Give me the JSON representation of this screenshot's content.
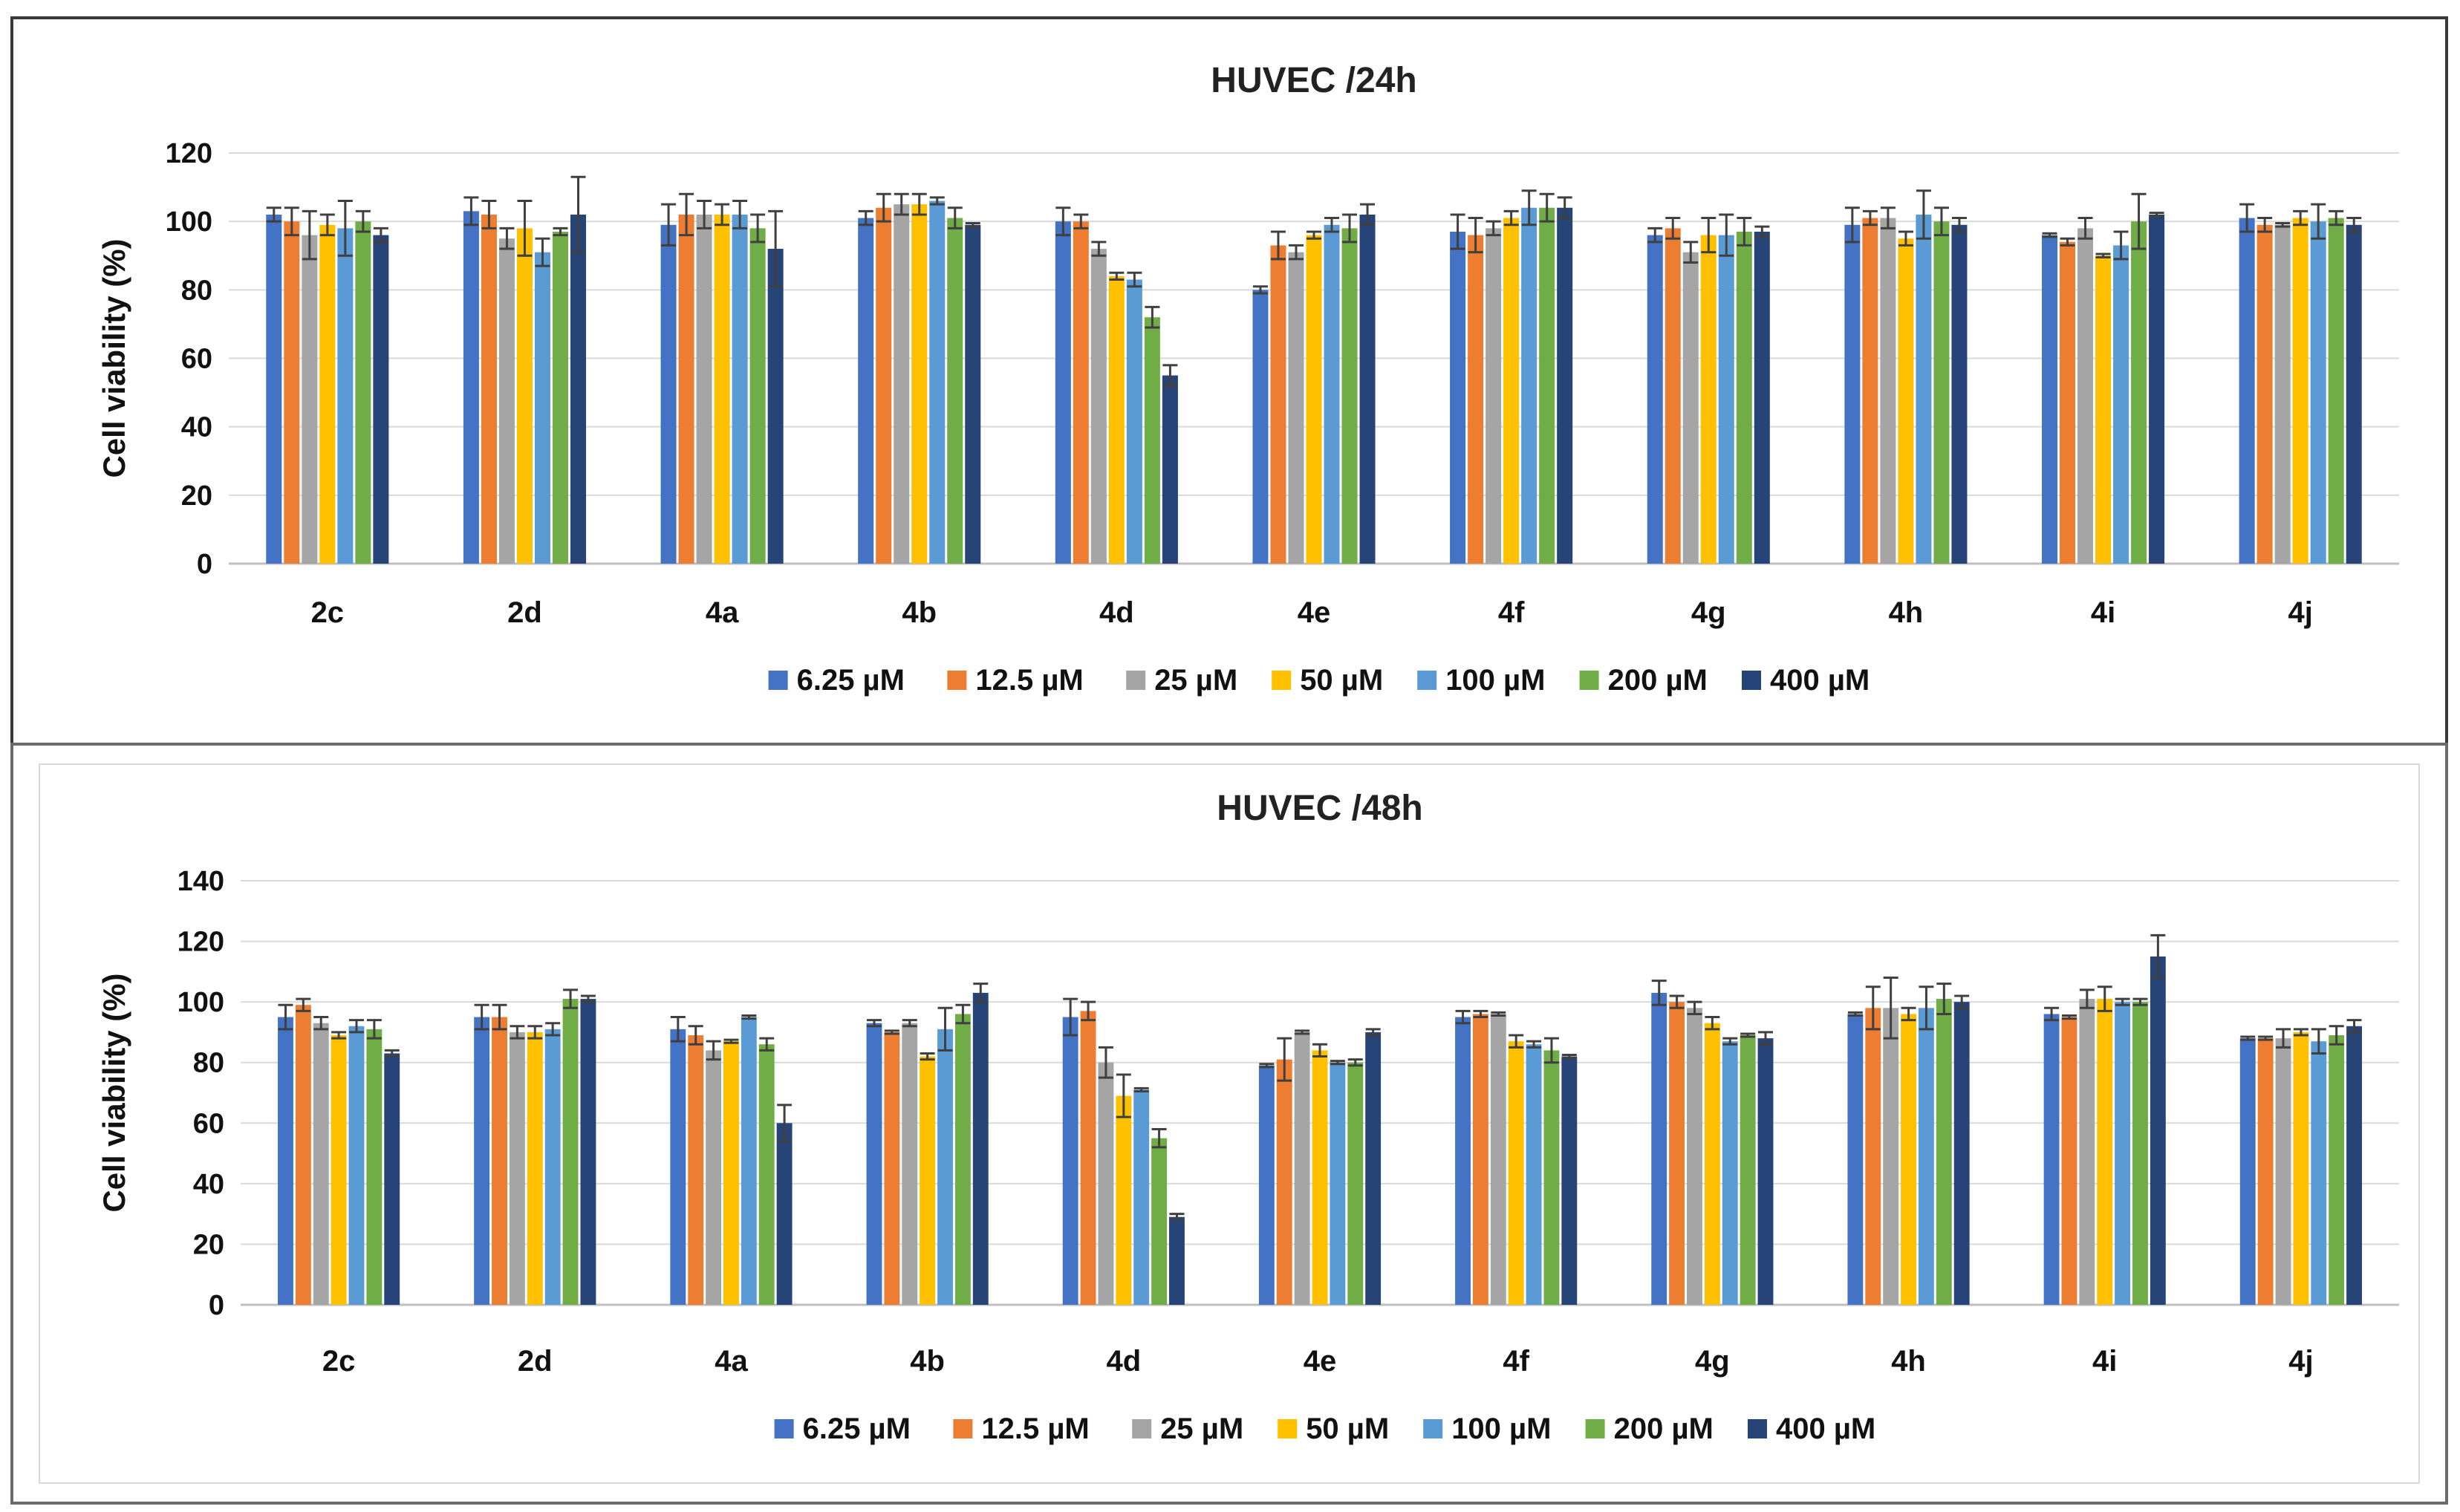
{
  "chart_data": [
    {
      "type": "bar",
      "title": "HUVEC /24h",
      "xlabel": "",
      "ylabel": "Cell viability (%)",
      "ylim": [
        0,
        120
      ],
      "yticks": [
        0,
        20,
        40,
        60,
        80,
        100,
        120
      ],
      "grid": true,
      "legend_position": "bottom",
      "categories": [
        "2c",
        "2d",
        "4a",
        "4b",
        "4d",
        "4e",
        "4f",
        "4g",
        "4h",
        "4i",
        "4j"
      ],
      "series": [
        {
          "name": "6.25 µM",
          "color": "#4472C4",
          "values": [
            102,
            103,
            99,
            101,
            100,
            80,
            97,
            96,
            99,
            96,
            101
          ],
          "errors": [
            2,
            4,
            6,
            2,
            4,
            1,
            5,
            2,
            5,
            0.5,
            4
          ]
        },
        {
          "name": "12.5 µM",
          "color": "#ED7D31",
          "values": [
            100,
            102,
            102,
            104,
            100,
            93,
            96,
            98,
            101,
            94,
            99
          ],
          "errors": [
            4,
            4,
            6,
            4,
            2,
            4,
            5,
            3,
            2,
            1,
            2
          ]
        },
        {
          "name": "25 µM",
          "color": "#A5A5A5",
          "values": [
            96,
            95,
            102,
            105,
            92,
            91,
            98,
            91,
            101,
            98,
            99
          ],
          "errors": [
            7,
            3,
            4,
            3,
            2,
            2,
            2,
            3,
            3,
            3,
            0.5
          ]
        },
        {
          "name": "50 µM",
          "color": "#FFC000",
          "values": [
            99,
            98,
            102,
            105,
            84,
            96,
            101,
            96,
            95,
            90,
            101
          ],
          "errors": [
            3,
            8,
            3,
            3,
            1,
            1,
            2,
            5,
            2,
            0.5,
            2
          ]
        },
        {
          "name": "100 µM",
          "color": "#5B9BD5",
          "values": [
            98,
            91,
            102,
            106,
            83,
            99,
            104,
            96,
            102,
            93,
            100
          ],
          "errors": [
            8,
            4,
            4,
            1,
            2,
            2,
            5,
            6,
            7,
            4,
            5
          ]
        },
        {
          "name": "200 µM",
          "color": "#70AD47",
          "values": [
            100,
            97,
            98,
            101,
            72,
            98,
            104,
            97,
            100,
            100,
            101
          ],
          "errors": [
            3,
            1,
            4,
            3,
            3,
            4,
            4,
            4,
            4,
            8,
            2
          ]
        },
        {
          "name": "400 µM",
          "color": "#264478",
          "values": [
            96,
            102,
            92,
            99,
            55,
            102,
            104,
            97,
            99,
            102,
            99
          ],
          "errors": [
            2,
            11,
            11,
            0.5,
            3,
            3,
            3,
            1.5,
            2,
            0.5,
            2
          ]
        }
      ]
    },
    {
      "type": "bar",
      "title": "HUVEC /48h",
      "xlabel": "",
      "ylabel": "Cell viability (%)",
      "ylim": [
        0,
        140
      ],
      "yticks": [
        0,
        20,
        40,
        60,
        80,
        100,
        120,
        140
      ],
      "grid": true,
      "legend_position": "bottom",
      "categories": [
        "2c",
        "2d",
        "4a",
        "4b",
        "4d",
        "4e",
        "4f",
        "4g",
        "4h",
        "4i",
        "4j"
      ],
      "series": [
        {
          "name": "6.25 µM",
          "color": "#4472C4",
          "values": [
            95,
            95,
            91,
            93,
            95,
            79,
            95,
            103,
            96,
            96,
            88
          ],
          "errors": [
            4,
            4,
            4,
            1,
            6,
            0.5,
            2,
            4,
            0.5,
            2,
            0.5
          ]
        },
        {
          "name": "12.5 µM",
          "color": "#ED7D31",
          "values": [
            99,
            95,
            89,
            90,
            97,
            81,
            96,
            100,
            98,
            95,
            88
          ],
          "errors": [
            2,
            4,
            3,
            0.5,
            3,
            7,
            1,
            2,
            7,
            0.5,
            0.5
          ]
        },
        {
          "name": "25 µM",
          "color": "#A5A5A5",
          "values": [
            93,
            90,
            84,
            93,
            80,
            90,
            96,
            98,
            98,
            101,
            88
          ],
          "errors": [
            2,
            2,
            3,
            1,
            5,
            0.5,
            0.5,
            2,
            10,
            3,
            3
          ]
        },
        {
          "name": "50 µM",
          "color": "#FFC000",
          "values": [
            89,
            90,
            87,
            82,
            69,
            84,
            87,
            93,
            96,
            101,
            90
          ],
          "errors": [
            1,
            2,
            0.5,
            1,
            7,
            2,
            2,
            2,
            2,
            4,
            1
          ]
        },
        {
          "name": "100 µM",
          "color": "#5B9BD5",
          "values": [
            92,
            91,
            95,
            91,
            71,
            80,
            86,
            87,
            98,
            100,
            87
          ],
          "errors": [
            2,
            2,
            0.5,
            7,
            0.5,
            0.5,
            1,
            1,
            7,
            1,
            4
          ]
        },
        {
          "name": "200 µM",
          "color": "#70AD47",
          "values": [
            91,
            101,
            86,
            96,
            55,
            80,
            84,
            89,
            101,
            100,
            89
          ],
          "errors": [
            3,
            3,
            2,
            3,
            3,
            1,
            4,
            0.5,
            5,
            1,
            3
          ]
        },
        {
          "name": "400 µM",
          "color": "#264478",
          "values": [
            83,
            101,
            60,
            103,
            29,
            90,
            82,
            88,
            100,
            115,
            92
          ],
          "errors": [
            1,
            1,
            6,
            3,
            1,
            1,
            0.5,
            2,
            2,
            7,
            2
          ]
        }
      ]
    }
  ]
}
